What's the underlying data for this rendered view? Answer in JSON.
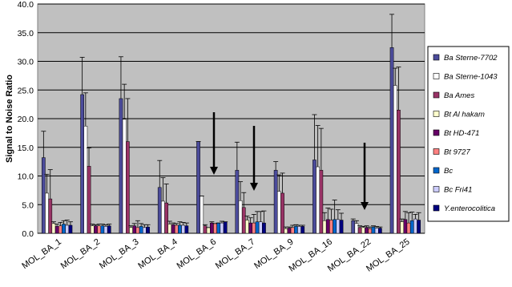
{
  "chart_data": {
    "type": "bar",
    "y_label": "Signal to Noise Ratio",
    "categories": [
      "MOL_BA_1",
      "MOL_BA_2",
      "MOL_BA_3",
      "MOL_BA_4",
      "MOL_BA_6",
      "MOL_BA_7",
      "MOL_BA_9",
      "MOL_BA_16",
      "MOL_BA_22",
      "MOL_BA_25"
    ],
    "series": [
      {
        "name": "Ba Sterne-7702",
        "color": "#4b4b9b",
        "values": [
          13.2,
          24.2,
          23.5,
          8.0,
          16.0,
          11.0,
          11.0,
          12.8,
          2.2,
          32.4
        ],
        "errors": [
          4.6,
          6.5,
          7.3,
          4.7,
          0,
          4.9,
          1.5,
          7.9,
          0.3,
          5.8
        ]
      },
      {
        "name": "Ba Sterne-1043",
        "color": "#ffffff",
        "values": [
          7.0,
          18.7,
          19.9,
          5.6,
          6.5,
          5.7,
          7.3,
          11.6,
          1.7,
          25.8
        ],
        "errors": [
          3.3,
          5.8,
          6.1,
          4.1,
          0,
          3.3,
          2.9,
          7.2,
          0.5,
          3.0
        ]
      },
      {
        "name": "Ba Ames",
        "color": "#993366",
        "values": [
          6.0,
          11.7,
          16.0,
          5.3,
          1.3,
          4.5,
          7.0,
          11.0,
          1.0,
          21.5
        ],
        "errors": [
          5.1,
          3.2,
          7.5,
          3.3,
          0.2,
          2.6,
          3.5,
          7.3,
          0.3,
          7.5
        ]
      },
      {
        "name": "Bt Al hakam",
        "color": "#ffffcc",
        "values": [
          1.7,
          1.3,
          1.0,
          1.6,
          1.0,
          2.3,
          0.8,
          2.2,
          1.0,
          2.0
        ],
        "errors": [
          0.3,
          0.3,
          0.3,
          0.5,
          0,
          0.7,
          0.3,
          1.4,
          0.2,
          0.5
        ]
      },
      {
        "name": "Bt HD-471",
        "color": "#660066",
        "values": [
          1.2,
          1.3,
          1.3,
          1.5,
          1.8,
          1.8,
          0.9,
          2.4,
          1.0,
          2.4
        ],
        "errors": [
          0.4,
          0.2,
          0.4,
          0.3,
          0.2,
          0.9,
          0.2,
          2.0,
          0.3,
          1.4
        ]
      },
      {
        "name": "Bt 9727",
        "color": "#ff8080",
        "values": [
          1.3,
          1.3,
          1.0,
          1.4,
          1.7,
          1.8,
          1.0,
          2.3,
          0.8,
          1.8
        ],
        "errors": [
          0.6,
          0.3,
          1.2,
          0.3,
          0,
          1.5,
          0.4,
          1.9,
          0.3,
          1.8
        ]
      },
      {
        "name": "Bc",
        "color": "#0066cc",
        "values": [
          1.6,
          1.3,
          1.2,
          1.4,
          1.8,
          2.0,
          1.2,
          2.4,
          1.1,
          2.2
        ],
        "errors": [
          0.6,
          0.3,
          0.5,
          0.6,
          0,
          1.8,
          0.3,
          3.4,
          0.2,
          1.5
        ]
      },
      {
        "name": "Bc Fri41",
        "color": "#ccccff",
        "values": [
          1.4,
          1.2,
          1.0,
          1.4,
          1.8,
          2.0,
          1.2,
          2.4,
          0.9,
          2.5
        ],
        "errors": [
          0.9,
          0.3,
          0.5,
          0.5,
          0.3,
          1.8,
          0.2,
          1.7,
          0.3,
          0.8
        ]
      },
      {
        "name": "Y.enterocolitica",
        "color": "#000080",
        "values": [
          1.4,
          1.3,
          1.1,
          1.3,
          2.0,
          1.8,
          1.2,
          2.3,
          0.9,
          2.3
        ],
        "errors": [
          0.6,
          0.3,
          0.4,
          0.5,
          0,
          2.1,
          0.2,
          1.2,
          0.2,
          1.3
        ]
      }
    ],
    "ylim": [
      0,
      40
    ],
    "yticks": [
      {
        "value": 0,
        "label": "0.0"
      },
      {
        "value": 5,
        "label": "5.0"
      },
      {
        "value": 10,
        "label": "10.0"
      },
      {
        "value": 15,
        "label": "15.0"
      },
      {
        "value": 20,
        "label": "20.0"
      },
      {
        "value": 25,
        "label": "25.0"
      },
      {
        "value": 30,
        "label": "30.0"
      },
      {
        "value": 35,
        "label": "35.0"
      },
      {
        "value": 40,
        "label": "40.0"
      }
    ],
    "grid": true
  }
}
